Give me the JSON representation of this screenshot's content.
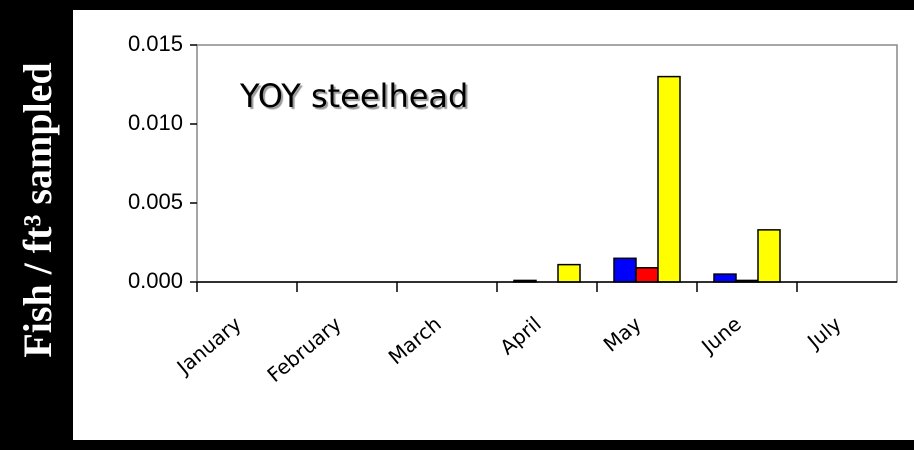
{
  "chart_data": {
    "type": "bar",
    "ylabel": "Fish / ft³ sampled",
    "annotation": "YOY steelhead",
    "categories": [
      "January",
      "February",
      "March",
      "April",
      "May",
      "June",
      "July"
    ],
    "series": [
      {
        "color": "#0000ff",
        "values": [
          0,
          0,
          0,
          0.0001,
          0.0015,
          0.0005,
          0
        ]
      },
      {
        "color": "#ff0000",
        "values": [
          0,
          0,
          0,
          0,
          0.0009,
          0.0001,
          0
        ]
      },
      {
        "color": "#ffff00",
        "values": [
          0,
          0,
          0,
          0.0011,
          0.013,
          0.0033,
          0
        ]
      }
    ],
    "ylim": [
      0,
      0.015
    ],
    "yticks": [
      {
        "value": 0,
        "label": "0.000"
      },
      {
        "value": 0.005,
        "label": "0.005"
      },
      {
        "value": 0.01,
        "label": "0.010"
      },
      {
        "value": 0.015,
        "label": "0.015"
      }
    ]
  }
}
